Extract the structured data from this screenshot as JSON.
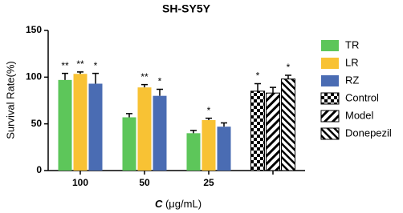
{
  "chart_data": {
    "type": "bar",
    "title": "SH-SY5Y",
    "ylabel": "Survival Rate(%)",
    "xlabel": {
      "variable": "C",
      "unit": "(μg/mL)"
    },
    "categories": [
      "100",
      "50",
      "25",
      null
    ],
    "ylim": [
      0,
      150
    ],
    "yticks": [
      0,
      50,
      100,
      150
    ],
    "grid": false,
    "legend": "right",
    "series": [
      {
        "name": "TR",
        "color": "#5dc65a",
        "pattern": "solid",
        "values": [
          97,
          57,
          40,
          null
        ],
        "errors": [
          7,
          4,
          3,
          null
        ],
        "significance": [
          "**",
          null,
          null,
          null
        ]
      },
      {
        "name": "LR",
        "color": "#f8c234",
        "pattern": "solid",
        "values": [
          103.5,
          89,
          54,
          null
        ],
        "errors": [
          2,
          3,
          2,
          null
        ],
        "significance": [
          "**",
          "**",
          "*",
          null
        ]
      },
      {
        "name": "RZ",
        "color": "#4a6cb3",
        "pattern": "solid",
        "values": [
          93,
          80,
          47,
          null
        ],
        "errors": [
          11,
          7,
          4,
          null
        ],
        "significance": [
          "*",
          "*",
          null,
          null
        ]
      },
      {
        "name": "Control",
        "color": "#000000",
        "pattern": "checker",
        "values": [
          null,
          null,
          null,
          85
        ],
        "errors": [
          null,
          null,
          null,
          8
        ],
        "significance": [
          null,
          null,
          null,
          "*"
        ]
      },
      {
        "name": "Model",
        "color": "#000000",
        "pattern": "hatch",
        "values": [
          null,
          null,
          null,
          83
        ],
        "errors": [
          null,
          null,
          null,
          6
        ],
        "significance": [
          null,
          null,
          null,
          null
        ]
      },
      {
        "name": "Donepezil",
        "color": "#000000",
        "pattern": "hatch-reverse",
        "values": [
          null,
          null,
          null,
          98
        ],
        "errors": [
          null,
          null,
          null,
          4
        ],
        "significance": [
          null,
          null,
          null,
          "*"
        ]
      }
    ]
  }
}
